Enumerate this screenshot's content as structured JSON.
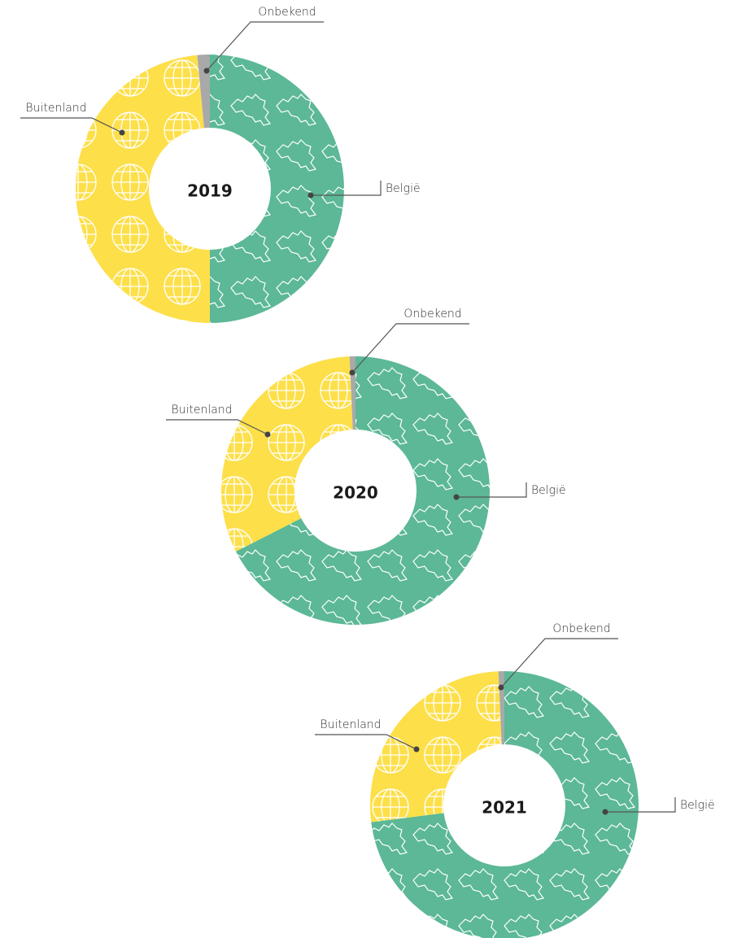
{
  "chart_data": [
    {
      "type": "pie",
      "title": "2019",
      "categories": [
        "België",
        "Buitenland",
        "Onbekend"
      ],
      "values": [
        50,
        48.5,
        1.5
      ],
      "colors": [
        "#5cb896",
        "#fddf4a",
        "#a9a9a9"
      ]
    },
    {
      "type": "pie",
      "title": "2020",
      "categories": [
        "België",
        "Buitenland",
        "Onbekend"
      ],
      "values": [
        67.5,
        31.8,
        0.7
      ],
      "colors": [
        "#5cb896",
        "#fddf4a",
        "#a9a9a9"
      ]
    },
    {
      "type": "pie",
      "title": "2021",
      "categories": [
        "België",
        "Buitenland",
        "Onbekend"
      ],
      "values": [
        73,
        26.3,
        0.7
      ],
      "colors": [
        "#5cb896",
        "#fddf4a",
        "#a9a9a9"
      ]
    }
  ]
}
